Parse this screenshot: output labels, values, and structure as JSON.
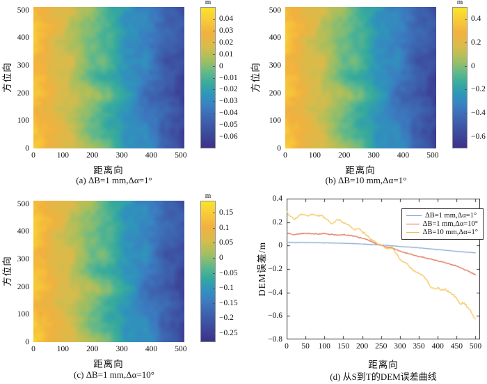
{
  "figure": {
    "background": "#ffffff",
    "axis_color": "#333333",
    "text_color": "#111111",
    "parula_stops": [
      [
        0.0,
        "#3c3289"
      ],
      [
        0.13,
        "#3d51a2"
      ],
      [
        0.22,
        "#3d68b2"
      ],
      [
        0.3,
        "#3b7fc2"
      ],
      [
        0.38,
        "#2f96bb"
      ],
      [
        0.46,
        "#37ab9d"
      ],
      [
        0.54,
        "#63b98a"
      ],
      [
        0.62,
        "#a0bf62"
      ],
      [
        0.72,
        "#d8bc4c"
      ],
      [
        0.82,
        "#f2b13f"
      ],
      [
        0.92,
        "#f8cd37"
      ],
      [
        1.0,
        "#f9e42b"
      ]
    ]
  },
  "chart_data": [
    {
      "id": "a",
      "type": "heatmap",
      "caption": "(a) ΔB=1 mm,Δα=1°",
      "xlabel": "距离向",
      "ylabel": "方位向",
      "xlim": [
        0,
        512
      ],
      "ylim": [
        0,
        512
      ],
      "x_ticks": [
        0,
        100,
        200,
        300,
        400,
        500
      ],
      "y_ticks": [
        0,
        100,
        200,
        300,
        400,
        500
      ],
      "colorbar": {
        "unit": "m",
        "vmin": -0.07,
        "vmax": 0.05,
        "ticks": [
          0.04,
          0.03,
          0.02,
          0.01,
          0,
          -0.01,
          -0.02,
          -0.03,
          -0.04,
          -0.05,
          -0.06
        ]
      },
      "field": {
        "description": "DEM error map, decreases from left (positive, yellow) to right (negative, dark blue) with mottled noise",
        "left_value": 0.037,
        "right_value": -0.057,
        "noise_amplitude": 0.008,
        "seed": 1337
      }
    },
    {
      "id": "b",
      "type": "heatmap",
      "caption": "(b) ΔB=10 mm,Δα=1°",
      "xlabel": "距离向",
      "ylabel": "方位向",
      "xlim": [
        0,
        512
      ],
      "ylim": [
        0,
        512
      ],
      "x_ticks": [
        0,
        100,
        200,
        300,
        400,
        500
      ],
      "y_ticks": [
        0,
        100,
        200,
        300,
        400,
        500
      ],
      "colorbar": {
        "unit": "m",
        "vmin": -0.7,
        "vmax": 0.5,
        "ticks": [
          0.4,
          0.2,
          0,
          -0.2,
          -0.4,
          -0.6
        ]
      },
      "field": {
        "description": "same spatial pattern as (a) scaled ×10",
        "left_value": 0.37,
        "right_value": -0.57,
        "noise_amplitude": 0.08,
        "seed": 1337
      }
    },
    {
      "id": "c",
      "type": "heatmap",
      "caption": "(c) ΔB=1 mm,Δα=10°",
      "xlabel": "距离向",
      "ylabel": "方位向",
      "xlim": [
        0,
        512
      ],
      "ylim": [
        0,
        512
      ],
      "x_ticks": [
        0,
        100,
        200,
        300,
        400,
        500
      ],
      "y_ticks": [
        0,
        100,
        200,
        300,
        400,
        500
      ],
      "colorbar": {
        "unit": "m",
        "vmin": -0.28,
        "vmax": 0.19,
        "ticks": [
          0.15,
          0.1,
          0.05,
          0,
          -0.05,
          -0.1,
          -0.15,
          -0.2,
          -0.25
        ]
      },
      "field": {
        "description": "same spatial pattern as (a) scaled ×~5",
        "left_value": 0.145,
        "right_value": -0.225,
        "noise_amplitude": 0.032,
        "seed": 1337
      }
    },
    {
      "id": "d",
      "type": "line",
      "caption": "(d) 从S到T的DEM误差曲线",
      "xlabel": "距离向",
      "ylabel": "DEM误差/m",
      "xlim": [
        0,
        512
      ],
      "ylim": [
        -0.8,
        0.4
      ],
      "x_ticks": [
        0,
        50,
        100,
        150,
        200,
        250,
        300,
        350,
        400,
        450,
        500
      ],
      "y_ticks": [
        0.4,
        0.2,
        0,
        -0.2,
        -0.4,
        -0.6,
        -0.8
      ],
      "legend_position": "top-right",
      "x": [
        0,
        10,
        20,
        30,
        40,
        50,
        60,
        70,
        80,
        90,
        100,
        110,
        120,
        130,
        140,
        150,
        160,
        170,
        180,
        190,
        200,
        210,
        220,
        230,
        240,
        250,
        260,
        270,
        280,
        290,
        300,
        310,
        320,
        330,
        340,
        350,
        360,
        370,
        380,
        390,
        400,
        410,
        420,
        430,
        440,
        450,
        460,
        470,
        480,
        490,
        500
      ],
      "series": [
        {
          "name": "ΔB=1 mm,Δα=1°",
          "color": "#7da4d3",
          "jitter": 0.001,
          "y": [
            0.027,
            0.027,
            0.026,
            0.026,
            0.026,
            0.025,
            0.025,
            0.025,
            0.024,
            0.024,
            0.023,
            0.022,
            0.022,
            0.021,
            0.02,
            0.019,
            0.018,
            0.017,
            0.016,
            0.015,
            0.013,
            0.012,
            0.01,
            0.008,
            0.006,
            0.004,
            0.002,
            0.0,
            -0.002,
            -0.005,
            -0.007,
            -0.01,
            -0.012,
            -0.015,
            -0.017,
            -0.02,
            -0.022,
            -0.025,
            -0.028,
            -0.031,
            -0.034,
            -0.037,
            -0.04,
            -0.043,
            -0.046,
            -0.049,
            -0.052,
            -0.055,
            -0.057,
            -0.059,
            -0.062
          ]
        },
        {
          "name": "ΔB=1 mm,Δα=10°",
          "color": "#dc6243",
          "jitter": 0.004,
          "y": [
            0.11,
            0.1,
            0.093,
            0.098,
            0.102,
            0.105,
            0.102,
            0.1,
            0.098,
            0.1,
            0.102,
            0.098,
            0.095,
            0.093,
            0.09,
            0.092,
            0.088,
            0.085,
            0.08,
            0.07,
            0.062,
            0.052,
            0.04,
            0.025,
            0.012,
            0.002,
            -0.008,
            -0.015,
            -0.02,
            -0.035,
            -0.048,
            -0.058,
            -0.066,
            -0.075,
            -0.085,
            -0.095,
            -0.1,
            -0.108,
            -0.115,
            -0.125,
            -0.13,
            -0.138,
            -0.148,
            -0.155,
            -0.165,
            -0.175,
            -0.19,
            -0.205,
            -0.215,
            -0.235,
            -0.25
          ]
        },
        {
          "name": "ΔB=10 mm,Δα=1°",
          "color": "#f3c14f",
          "jitter": 0.009,
          "y": [
            0.29,
            0.25,
            0.225,
            0.245,
            0.268,
            0.262,
            0.258,
            0.268,
            0.252,
            0.258,
            0.24,
            0.218,
            0.185,
            0.21,
            0.222,
            0.192,
            0.178,
            0.162,
            0.132,
            0.142,
            0.12,
            0.092,
            0.062,
            0.04,
            0.012,
            0.0,
            -0.018,
            -0.03,
            -0.012,
            -0.068,
            -0.118,
            -0.138,
            -0.158,
            -0.198,
            -0.218,
            -0.238,
            -0.252,
            -0.288,
            -0.348,
            -0.368,
            -0.358,
            -0.378,
            -0.368,
            -0.398,
            -0.418,
            -0.448,
            -0.498,
            -0.488,
            -0.528,
            -0.578,
            -0.625
          ]
        }
      ]
    }
  ]
}
